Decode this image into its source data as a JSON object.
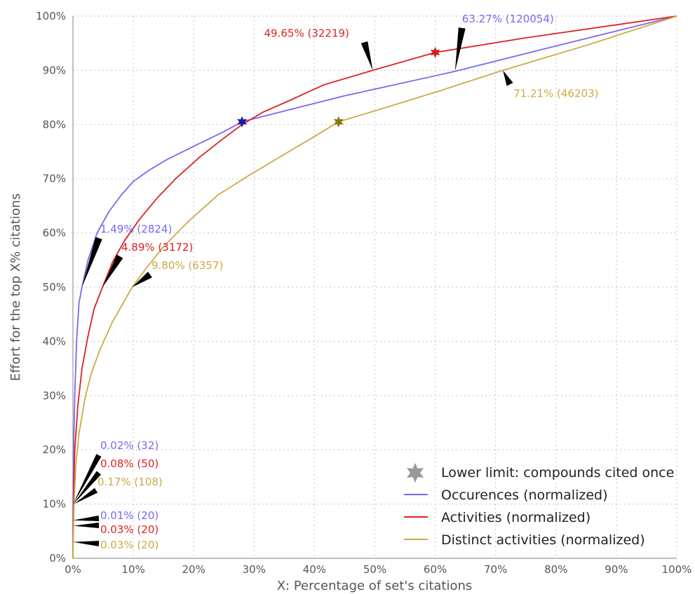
{
  "chart_data": {
    "type": "line",
    "xlabel": "X: Percentage of set's citations",
    "ylabel": "Effort for the top X% citations",
    "xlim": [
      0,
      100
    ],
    "ylim": [
      0,
      100
    ],
    "grid": true,
    "legend_position": "bottom-right",
    "x_ticks": [
      "0%",
      "10%",
      "20%",
      "30%",
      "40%",
      "50%",
      "60%",
      "70%",
      "80%",
      "90%",
      "100%"
    ],
    "y_ticks": [
      "0%",
      "10%",
      "20%",
      "30%",
      "40%",
      "50%",
      "60%",
      "70%",
      "80%",
      "90%",
      "100%"
    ],
    "legend": {
      "marker_label": "Lower limit: compounds cited once",
      "marker_color": "#999999"
    },
    "series": [
      {
        "name": "Occurences (normalized)",
        "color": "#7b68ee",
        "x": [
          0,
          0.01,
          0.02,
          0.1,
          0.3,
          0.6,
          1,
          1.49,
          2.5,
          4,
          6,
          8,
          10,
          12.5,
          15.5,
          20,
          25,
          28,
          35,
          45,
          63.27,
          80,
          100
        ],
        "y": [
          0,
          7,
          10,
          20,
          30,
          40,
          47,
          50,
          55,
          60,
          64,
          67,
          69.5,
          71.5,
          73.5,
          76,
          78.7,
          80.5,
          82.5,
          85.3,
          89.8,
          94.5,
          100
        ],
        "marker": {
          "x": 28,
          "y": 80.5,
          "color": "#1a1aa0"
        }
      },
      {
        "name": "Activities (normalized)",
        "color": "#dd2222",
        "x": [
          0,
          0.03,
          0.08,
          0.3,
          0.8,
          1.5,
          2.5,
          3.5,
          4.89,
          6.5,
          8.5,
          11,
          14,
          17,
          21,
          25,
          28,
          31.5,
          36,
          41.5,
          49.65,
          60,
          75,
          100
        ],
        "y": [
          0,
          6,
          10,
          20,
          28,
          35,
          41,
          46,
          50,
          54.5,
          58.5,
          62.5,
          66.5,
          70,
          74,
          77.5,
          80,
          82.3,
          84.5,
          87.3,
          90,
          93.3,
          96,
          100
        ],
        "marker": {
          "x": 60,
          "y": 93.3,
          "color": "#cc2222"
        }
      },
      {
        "name": "Distinct activities (normalized)",
        "color": "#ccaa44",
        "x": [
          0,
          0.03,
          0.17,
          0.5,
          1,
          2,
          3,
          4.5,
          6.5,
          9.8,
          12,
          15,
          19,
          24,
          29,
          35,
          40,
          44,
          52,
          61,
          71.21,
          85,
          100
        ],
        "y": [
          0,
          3,
          10,
          17.5,
          23,
          29.5,
          34,
          38.5,
          43.5,
          50,
          53.3,
          57.5,
          62,
          67,
          70.5,
          74.5,
          77.8,
          80.5,
          83.2,
          86.3,
          90,
          94.6,
          100
        ],
        "marker": {
          "x": 44,
          "y": 80.5,
          "color": "#8a7410"
        }
      }
    ],
    "annotations": [
      {
        "text": "63.27% (120054)",
        "series": 0,
        "x": 63.27,
        "y": 89.8
      },
      {
        "text": "49.65% (32219)",
        "series": 1,
        "x": 49.65,
        "y": 90
      },
      {
        "text": "71.21% (46203)",
        "series": 2,
        "x": 71.21,
        "y": 90
      },
      {
        "text": "1.49% (2824)",
        "series": 0,
        "x": 1.49,
        "y": 50
      },
      {
        "text": "4.89% (3172)",
        "series": 1,
        "x": 4.89,
        "y": 50
      },
      {
        "text": "9.80% (6357)",
        "series": 2,
        "x": 9.8,
        "y": 50
      },
      {
        "text": "0.02% (32)",
        "series": 0,
        "x": 0.02,
        "y": 10
      },
      {
        "text": "0.08% (50)",
        "series": 1,
        "x": 0.08,
        "y": 10
      },
      {
        "text": "0.17% (108)",
        "series": 2,
        "x": 0.17,
        "y": 10
      },
      {
        "text": "0.01% (20)",
        "series": 0,
        "x": 0.01,
        "y": 7
      },
      {
        "text": "0.03% (20)",
        "series": 1,
        "x": 0.03,
        "y": 6
      },
      {
        "text": "0.03% (20)",
        "series": 2,
        "x": 0.03,
        "y": 3
      }
    ]
  }
}
